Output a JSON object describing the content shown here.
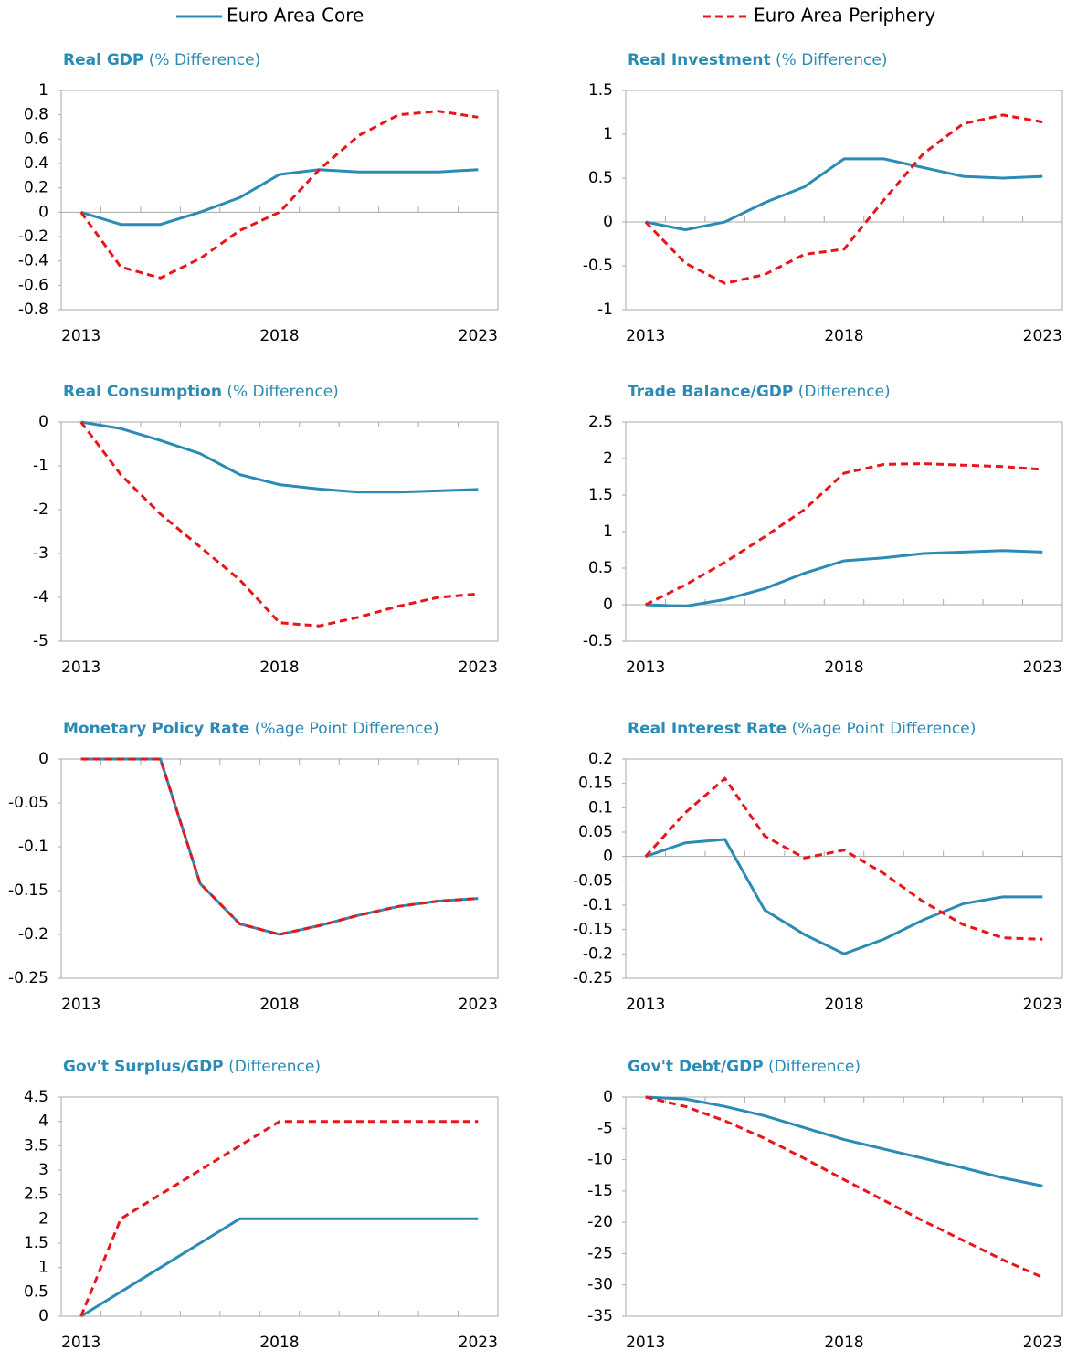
{
  "legend": {
    "series": [
      {
        "name": "Euro Area Core",
        "color": "#2b8bb5",
        "dashed": false
      },
      {
        "name": "Euro Area Periphery",
        "color": "#e8161b",
        "dashed": true
      }
    ]
  },
  "chart_data": [
    {
      "type": "line",
      "title": "Real GDP",
      "title_note": "(% Difference)",
      "x": [
        2013,
        2014,
        2015,
        2016,
        2017,
        2018,
        2019,
        2020,
        2021,
        2022,
        2023
      ],
      "xlim": [
        2012.5,
        2023.5
      ],
      "xticks": [
        2013,
        2018,
        2023
      ],
      "ylim": [
        -0.8,
        1
      ],
      "yticks": [
        -0.8,
        -0.6,
        -0.4,
        -0.2,
        0,
        0.2,
        0.4,
        0.6,
        0.8,
        1
      ],
      "series": [
        {
          "values": [
            0,
            -0.1,
            -0.1,
            0,
            0.12,
            0.31,
            0.35,
            0.33,
            0.33,
            0.33,
            0.35
          ]
        },
        {
          "values": [
            0,
            -0.45,
            -0.54,
            -0.38,
            -0.15,
            0,
            0.35,
            0.63,
            0.8,
            0.83,
            0.78
          ]
        }
      ]
    },
    {
      "type": "line",
      "title": "Real Investment",
      "title_note": "(% Difference)",
      "x": [
        2013,
        2014,
        2015,
        2016,
        2017,
        2018,
        2019,
        2020,
        2021,
        2022,
        2023
      ],
      "xlim": [
        2012.5,
        2023.5
      ],
      "xticks": [
        2013,
        2018,
        2023
      ],
      "ylim": [
        -1,
        1.5
      ],
      "yticks": [
        -1,
        -0.5,
        0,
        0.5,
        1,
        1.5
      ],
      "series": [
        {
          "values": [
            0,
            -0.09,
            0,
            0.22,
            0.4,
            0.72,
            0.72,
            0.62,
            0.52,
            0.5,
            0.52
          ]
        },
        {
          "values": [
            0,
            -0.47,
            -0.7,
            -0.6,
            -0.37,
            -0.31,
            0.25,
            0.78,
            1.12,
            1.22,
            1.14
          ]
        }
      ]
    },
    {
      "type": "line",
      "title": "Real Consumption",
      "title_note": "(% Difference)",
      "x": [
        2013,
        2014,
        2015,
        2016,
        2017,
        2018,
        2019,
        2020,
        2021,
        2022,
        2023
      ],
      "xlim": [
        2012.5,
        2023.5
      ],
      "xticks": [
        2013,
        2018,
        2023
      ],
      "ylim": [
        -5,
        0
      ],
      "yticks": [
        -5,
        -4,
        -3,
        -2,
        -1,
        0
      ],
      "series": [
        {
          "values": [
            0,
            -0.15,
            -0.42,
            -0.72,
            -1.2,
            -1.43,
            -1.53,
            -1.6,
            -1.6,
            -1.57,
            -1.54
          ]
        },
        {
          "values": [
            0,
            -1.2,
            -2.1,
            -2.85,
            -3.6,
            -4.58,
            -4.65,
            -4.45,
            -4.2,
            -4,
            -3.92
          ]
        }
      ]
    },
    {
      "type": "line",
      "title": "Trade Balance/GDP",
      "title_note": "(Difference)",
      "x": [
        2013,
        2014,
        2015,
        2016,
        2017,
        2018,
        2019,
        2020,
        2021,
        2022,
        2023
      ],
      "xlim": [
        2012.5,
        2023.5
      ],
      "xticks": [
        2013,
        2018,
        2023
      ],
      "ylim": [
        -0.5,
        2.5
      ],
      "yticks": [
        -0.5,
        0,
        0.5,
        1,
        1.5,
        2,
        2.5
      ],
      "series": [
        {
          "values": [
            0,
            -0.02,
            0.07,
            0.22,
            0.43,
            0.6,
            0.64,
            0.7,
            0.72,
            0.74,
            0.72
          ]
        },
        {
          "values": [
            0,
            0.27,
            0.58,
            0.93,
            1.3,
            1.8,
            1.92,
            1.93,
            1.91,
            1.89,
            1.85
          ]
        }
      ]
    },
    {
      "type": "line",
      "title": "Monetary Policy Rate",
      "title_note": "(%age Point Difference)",
      "x": [
        2013,
        2014,
        2015,
        2016,
        2017,
        2018,
        2019,
        2020,
        2021,
        2022,
        2023
      ],
      "xlim": [
        2012.5,
        2023.5
      ],
      "xticks": [
        2013,
        2018,
        2023
      ],
      "ylim": [
        -0.25,
        0
      ],
      "yticks": [
        -0.25,
        -0.2,
        -0.15,
        -0.1,
        -0.05,
        0
      ],
      "series": [
        {
          "values": [
            0,
            0,
            0,
            -0.142,
            -0.188,
            -0.2,
            -0.19,
            -0.178,
            -0.168,
            -0.162,
            -0.159
          ]
        },
        {
          "values": [
            0,
            0,
            0,
            -0.142,
            -0.188,
            -0.2,
            -0.19,
            -0.178,
            -0.168,
            -0.162,
            -0.159
          ]
        }
      ]
    },
    {
      "type": "line",
      "title": "Real Interest Rate",
      "title_note": "(%age Point Difference)",
      "x": [
        2013,
        2014,
        2015,
        2016,
        2017,
        2018,
        2019,
        2020,
        2021,
        2022,
        2023
      ],
      "xlim": [
        2012.5,
        2023.5
      ],
      "xticks": [
        2013,
        2018,
        2023
      ],
      "ylim": [
        -0.25,
        0.2
      ],
      "yticks": [
        -0.25,
        -0.2,
        -0.15,
        -0.1,
        -0.05,
        0,
        0.05,
        0.1,
        0.15,
        0.2
      ],
      "series": [
        {
          "values": [
            0,
            0.028,
            0.035,
            -0.11,
            -0.16,
            -0.2,
            -0.17,
            -0.13,
            -0.097,
            -0.083,
            -0.083
          ]
        },
        {
          "values": [
            0,
            0.09,
            0.16,
            0.042,
            -0.003,
            0.013,
            -0.035,
            -0.093,
            -0.14,
            -0.167,
            -0.17
          ]
        }
      ]
    },
    {
      "type": "line",
      "title": "Gov't Surplus/GDP",
      "title_note": "(Difference)",
      "x": [
        2013,
        2014,
        2015,
        2016,
        2017,
        2018,
        2019,
        2020,
        2021,
        2022,
        2023
      ],
      "xlim": [
        2012.5,
        2023.5
      ],
      "xticks": [
        2013,
        2018,
        2023
      ],
      "ylim": [
        0,
        4.5
      ],
      "yticks": [
        0,
        0.5,
        1,
        1.5,
        2,
        2.5,
        3,
        3.5,
        4,
        4.5
      ],
      "series": [
        {
          "values": [
            0,
            0.5,
            1,
            1.5,
            2,
            2,
            2,
            2,
            2,
            2,
            2
          ]
        },
        {
          "values": [
            0,
            2,
            2.5,
            3,
            3.5,
            4,
            4,
            4,
            4,
            4,
            4
          ]
        }
      ]
    },
    {
      "type": "line",
      "title": "Gov't Debt/GDP",
      "title_note": "(Difference)",
      "x": [
        2013,
        2014,
        2015,
        2016,
        2017,
        2018,
        2019,
        2020,
        2021,
        2022,
        2023
      ],
      "xlim": [
        2012.5,
        2023.5
      ],
      "xticks": [
        2013,
        2018,
        2023
      ],
      "ylim": [
        -35,
        0
      ],
      "yticks": [
        -35,
        -30,
        -25,
        -20,
        -15,
        -10,
        -5,
        0
      ],
      "series": [
        {
          "values": [
            0,
            -0.3,
            -1.5,
            -3,
            -4.9,
            -6.8,
            -8.3,
            -9.8,
            -11.3,
            -12.9,
            -14.2
          ]
        },
        {
          "values": [
            0,
            -1.5,
            -3.8,
            -6.6,
            -9.8,
            -13.2,
            -16.5,
            -19.8,
            -22.9,
            -26,
            -28.8
          ]
        }
      ]
    }
  ]
}
